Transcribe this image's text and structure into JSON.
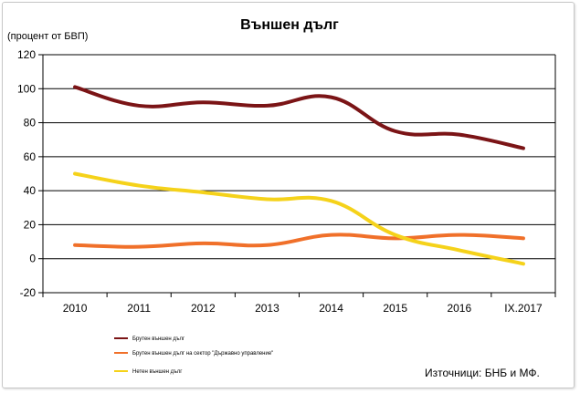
{
  "chart_data": {
    "type": "line",
    "title": "Външен дълг",
    "ylabel": "(процент от БВП)",
    "xlabel": "",
    "categories": [
      "2010",
      "2011",
      "2012",
      "2013",
      "2014",
      "2015",
      "2016",
      "IX.2017"
    ],
    "ylim": [
      -20,
      120
    ],
    "yticks": [
      -20,
      0,
      20,
      40,
      60,
      80,
      100,
      120
    ],
    "grid": true,
    "legend_position": "bottom-left",
    "series": [
      {
        "name": "Брутен външен дълг",
        "color": "#7b1416",
        "values": [
          101,
          90,
          92,
          90,
          95,
          75,
          73,
          65
        ]
      },
      {
        "name": "Брутен външен дълг на сектор \"Държавно управление\"",
        "color": "#f0702a",
        "values": [
          8,
          7,
          9,
          8,
          14,
          12,
          14,
          12
        ]
      },
      {
        "name": "Нетен външен дълг",
        "color": "#f5d21a",
        "values": [
          50,
          43,
          39,
          35,
          34,
          14,
          5,
          -3
        ]
      }
    ],
    "source": "Източници: БНБ и МФ."
  }
}
